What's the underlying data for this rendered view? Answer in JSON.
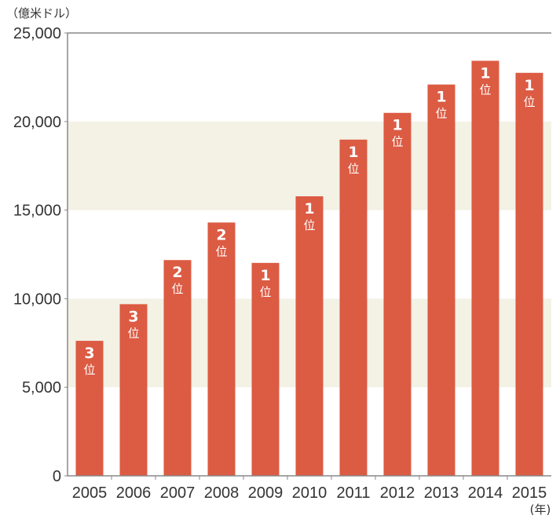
{
  "colors": {
    "bar": "#dc5b43",
    "band": "#f4f1e5",
    "axis": "#888888",
    "plot_bg": "#ffffff"
  },
  "chart_data": {
    "type": "bar",
    "ylabel": "（億米ドル）",
    "xlabel": "(年)",
    "ylim": [
      0,
      25000
    ],
    "yticks": [
      0,
      5000,
      10000,
      15000,
      20000,
      25000
    ],
    "ytick_labels": [
      "0",
      "5,000",
      "10,000",
      "15,000",
      "20,000",
      "25,000"
    ],
    "categories": [
      "2005",
      "2006",
      "2007",
      "2008",
      "2009",
      "2010",
      "2011",
      "2012",
      "2013",
      "2014",
      "2015"
    ],
    "values": [
      7620,
      9690,
      12180,
      14300,
      12020,
      15780,
      18980,
      20490,
      22090,
      23430,
      22750
    ],
    "rank_numbers": [
      "3",
      "3",
      "2",
      "2",
      "1",
      "1",
      "1",
      "1",
      "1",
      "1",
      "1"
    ],
    "rank_suffix": "位",
    "grid": "alternating-bands"
  }
}
